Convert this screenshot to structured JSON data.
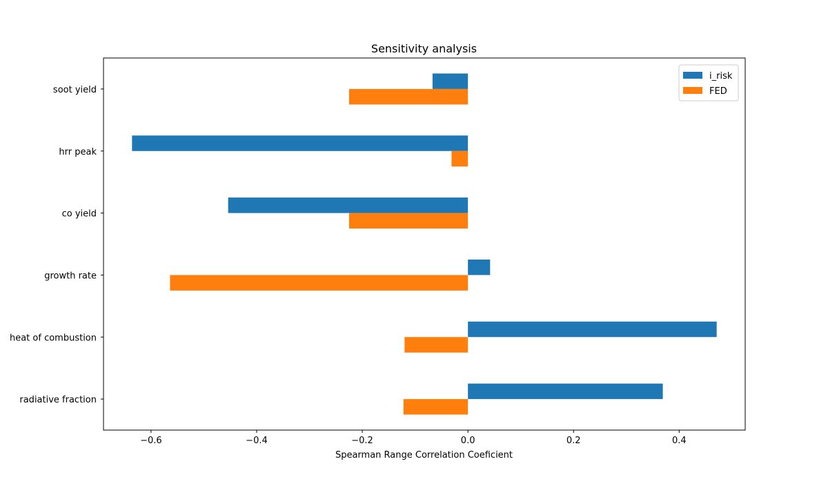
{
  "chart_data": {
    "type": "bar",
    "orientation": "horizontal",
    "title": "Sensitivity analysis",
    "xlabel": "Spearman Range Correlation Coeficient",
    "ylabel": "",
    "categories": [
      "soot yield",
      "hrr peak",
      "co yield",
      "growth rate",
      "heat of combustion",
      "radiative fraction"
    ],
    "series": [
      {
        "name": "i_risk",
        "color": "#1f77b4",
        "values": [
          -0.067,
          -0.636,
          -0.454,
          0.042,
          0.471,
          0.369
        ]
      },
      {
        "name": "FED",
        "color": "#ff7f0e",
        "values": [
          -0.225,
          -0.031,
          -0.225,
          -0.564,
          -0.12,
          -0.122
        ]
      }
    ],
    "xlim": [
      -0.69,
      0.525
    ],
    "xticks": [
      -0.6,
      -0.4,
      -0.2,
      0.0,
      0.2,
      0.4
    ],
    "xtick_labels": [
      "−0.6",
      "−0.4",
      "−0.2",
      "0.0",
      "0.2",
      "0.4"
    ],
    "grid": false,
    "legend_position": "top-right"
  }
}
